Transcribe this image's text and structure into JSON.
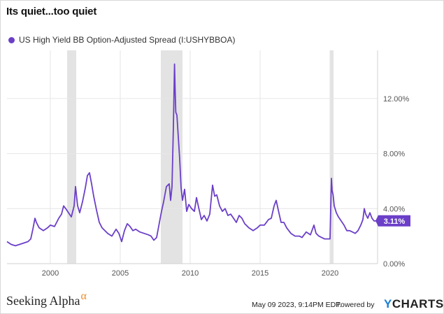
{
  "title": "Its quiet...too quiet",
  "footer": {
    "brand": "Seeking Alpha",
    "brand_alpha": "α",
    "date": "May 09 2023, 9:14PM EDT.",
    "powered": "Powered by",
    "logo_y": "Y",
    "logo_rest": "CHARTS"
  },
  "colors": {
    "series": "#6b3fc8",
    "recession": "#e3e3e3",
    "grid": "#e6e6e6"
  },
  "chart_data": {
    "type": "line",
    "title": "Its quiet...too quiet",
    "xlabel": "",
    "ylabel": "",
    "xlim": [
      1996.9,
      2023.4
    ],
    "ylim": [
      0,
      15.5
    ],
    "x_ticks": [
      2000,
      2005,
      2010,
      2015,
      2020
    ],
    "x_tick_labels": [
      "2000",
      "2005",
      "2010",
      "2015",
      "2020"
    ],
    "y_ticks": [
      0,
      4,
      8,
      12
    ],
    "y_tick_labels": [
      "0.00%",
      "4.00%",
      "8.00%",
      "12.00%"
    ],
    "grid": true,
    "legend_position": "top-left",
    "shaded_periods": [
      [
        2001.2,
        2001.85
      ],
      [
        2007.9,
        2009.45
      ],
      [
        2020.0,
        2020.25
      ]
    ],
    "last_value_label": "3.11%",
    "series": [
      {
        "name": "US High Yield BB Option-Adjusted Spread (I:USHYBBOA)",
        "x": [
          1996.9,
          1997.2,
          1997.5,
          1997.8,
          1998.1,
          1998.4,
          1998.6,
          1998.75,
          1998.9,
          1999.0,
          1999.2,
          1999.5,
          1999.8,
          2000.0,
          2000.3,
          2000.6,
          2000.8,
          2000.95,
          2001.1,
          2001.3,
          2001.5,
          2001.7,
          2001.8,
          2001.95,
          2002.1,
          2002.3,
          2002.5,
          2002.65,
          2002.8,
          2002.95,
          2003.1,
          2003.3,
          2003.5,
          2003.7,
          2003.9,
          2004.1,
          2004.4,
          2004.7,
          2004.9,
          2005.1,
          2005.3,
          2005.5,
          2005.7,
          2005.9,
          2006.1,
          2006.4,
          2006.7,
          2007.0,
          2007.2,
          2007.4,
          2007.6,
          2007.8,
          2007.95,
          2008.1,
          2008.3,
          2008.5,
          2008.6,
          2008.7,
          2008.8,
          2008.88,
          2008.92,
          2008.97,
          2009.05,
          2009.15,
          2009.25,
          2009.35,
          2009.45,
          2009.6,
          2009.75,
          2009.9,
          2010.1,
          2010.3,
          2010.45,
          2010.6,
          2010.8,
          2011.0,
          2011.2,
          2011.4,
          2011.6,
          2011.75,
          2011.9,
          2012.1,
          2012.3,
          2012.5,
          2012.7,
          2012.9,
          2013.1,
          2013.3,
          2013.5,
          2013.7,
          2013.9,
          2014.2,
          2014.5,
          2014.8,
          2015.0,
          2015.3,
          2015.6,
          2015.8,
          2016.0,
          2016.15,
          2016.3,
          2016.5,
          2016.7,
          2016.9,
          2017.2,
          2017.5,
          2017.8,
          2018.0,
          2018.3,
          2018.6,
          2018.85,
          2019.0,
          2019.2,
          2019.4,
          2019.6,
          2019.8,
          2020.0,
          2020.1,
          2020.15,
          2020.22,
          2020.3,
          2020.45,
          2020.6,
          2020.8,
          2021.0,
          2021.2,
          2021.4,
          2021.6,
          2021.8,
          2022.0,
          2022.2,
          2022.35,
          2022.45,
          2022.55,
          2022.7,
          2022.85,
          2023.0,
          2023.15,
          2023.3
        ],
        "values": [
          1.6,
          1.4,
          1.3,
          1.4,
          1.5,
          1.6,
          1.8,
          2.5,
          3.3,
          3.0,
          2.6,
          2.4,
          2.6,
          2.8,
          2.7,
          3.3,
          3.6,
          4.2,
          4.0,
          3.7,
          3.4,
          4.2,
          5.6,
          4.2,
          3.7,
          4.5,
          5.5,
          6.4,
          6.6,
          5.8,
          4.9,
          3.9,
          3.0,
          2.6,
          2.4,
          2.2,
          2.0,
          2.5,
          2.2,
          1.6,
          2.4,
          2.9,
          2.7,
          2.4,
          2.5,
          2.3,
          2.2,
          2.1,
          2.0,
          1.7,
          1.9,
          3.0,
          3.8,
          4.5,
          5.6,
          5.8,
          4.6,
          5.6,
          10.0,
          14.5,
          12.8,
          11.0,
          10.8,
          9.2,
          7.6,
          5.5,
          4.6,
          5.4,
          3.8,
          4.3,
          4.0,
          3.8,
          4.8,
          4.1,
          3.2,
          3.5,
          3.1,
          3.6,
          5.7,
          4.9,
          5.0,
          4.2,
          3.8,
          4.0,
          3.5,
          3.6,
          3.3,
          3.0,
          3.5,
          3.3,
          2.9,
          2.6,
          2.4,
          2.6,
          2.8,
          2.8,
          3.2,
          3.3,
          4.2,
          4.6,
          3.9,
          3.0,
          3.0,
          2.6,
          2.2,
          2.0,
          2.0,
          1.9,
          2.3,
          2.1,
          2.8,
          2.2,
          2.0,
          1.9,
          1.8,
          1.8,
          1.8,
          6.2,
          5.3,
          5.0,
          4.2,
          3.7,
          3.4,
          3.1,
          2.8,
          2.4,
          2.4,
          2.3,
          2.2,
          2.4,
          2.8,
          3.2,
          4.0,
          3.6,
          3.3,
          3.7,
          3.3,
          3.1,
          3.11
        ]
      }
    ]
  }
}
